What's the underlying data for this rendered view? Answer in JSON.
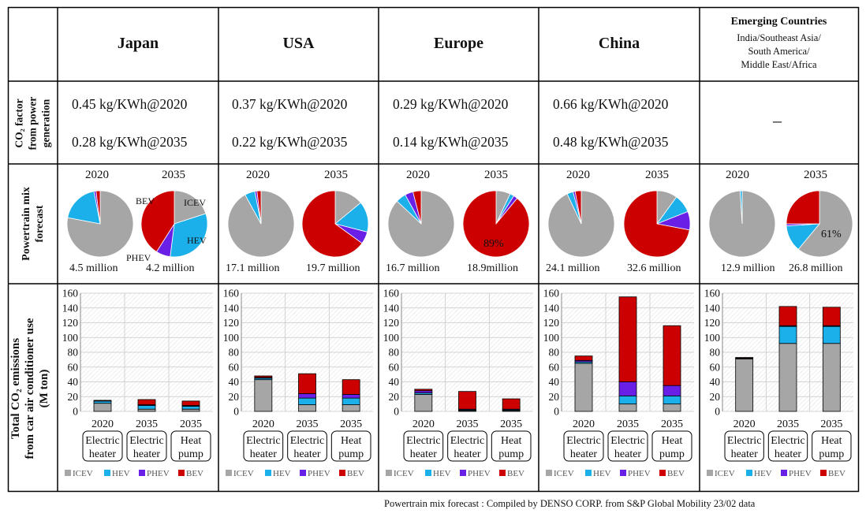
{
  "header": {
    "countries": [
      "Japan",
      "USA",
      "Europe",
      "China"
    ],
    "emerging_title": "Emerging Countries",
    "emerging_sub": [
      "India/Southeast Asia/",
      "South America/",
      "Middle East/Africa"
    ]
  },
  "row_labels": {
    "co2_factor": [
      "CO₂ factor",
      "from power",
      "generation"
    ],
    "powertrain": [
      "Powertrain mix",
      "forecast"
    ],
    "emissions": [
      "Total CO₂ emissions",
      "from car air conditioner use",
      "(M ton)"
    ]
  },
  "co2_factors": [
    [
      "0.45 kg/KWh@2020",
      "0.28 kg/KWh@2035"
    ],
    [
      "0.37 kg/KWh@2020",
      "0.22 kg/KWh@2035"
    ],
    [
      "0.29 kg/KWh@2020",
      "0.14 kg/KWh@2035"
    ],
    [
      "0.66 kg/KWh@2020",
      "0.48 kg/KWh@2035"
    ]
  ],
  "co2_factor_emerging": "–",
  "years": [
    "2020",
    "2035"
  ],
  "colors": {
    "ICEV": "#a6a6a6",
    "HEV": "#1cb0ea",
    "PHEV": "#6a1fe6",
    "BEV": "#cc0000"
  },
  "pie_labels": {
    "bev": "BEV",
    "icev": "ICEV",
    "hev": "HEV",
    "phev": "PHEV",
    "europe_bev": "89%",
    "emerging_icev": "61%"
  },
  "vehicles": [
    [
      "4.5 million",
      "4.2 million"
    ],
    [
      "17.1 million",
      "19.7 million"
    ],
    [
      "16.7 million",
      "18.9million"
    ],
    [
      "24.1 million",
      "32.6 million"
    ],
    [
      "12.9 million",
      "26.8 million"
    ]
  ],
  "legend": [
    "ICEV",
    "HEV",
    "PHEV",
    "BEV"
  ],
  "source": "Powertrain mix forecast : Compiled by DENSO CORP. from S&P Global Mobility 23/02 data",
  "chart_data": {
    "pies": {
      "type": "pie",
      "series_order": [
        "ICEV",
        "HEV",
        "PHEV",
        "BEV"
      ],
      "regions": [
        {
          "region": "Japan",
          "2020": [
            78,
            19,
            1,
            2
          ],
          "2035": [
            20,
            32,
            7,
            41
          ]
        },
        {
          "region": "USA",
          "2020": [
            92,
            5,
            1,
            2
          ],
          "2035": [
            14,
            15,
            6,
            65
          ]
        },
        {
          "region": "Europe",
          "2020": [
            87,
            5,
            4,
            4
          ],
          "2035": [
            7,
            2,
            2,
            89
          ]
        },
        {
          "region": "China",
          "2020": [
            93,
            3,
            1,
            3
          ],
          "2035": [
            10,
            9,
            9,
            72
          ]
        },
        {
          "region": "Emerging Countries",
          "2020": [
            99,
            1,
            0,
            0
          ],
          "2035": [
            61,
            13,
            1,
            25
          ]
        }
      ]
    },
    "bars": {
      "type": "bar",
      "stacked": true,
      "series_order": [
        "ICEV",
        "HEV",
        "PHEV",
        "BEV"
      ],
      "ylim": [
        0,
        160
      ],
      "yticks": [
        0,
        20,
        40,
        60,
        80,
        100,
        120,
        140,
        160
      ],
      "grid": true,
      "legend_position": "bottom",
      "categories": [
        [
          "2020",
          "Electric",
          "heater"
        ],
        [
          "2035",
          "Electric",
          "heater"
        ],
        [
          "2035",
          "Heat",
          "pump"
        ]
      ],
      "regions": [
        {
          "region": "Japan",
          "bars": [
            [
              11,
              3,
              0,
              1
            ],
            [
              3,
              5,
              1,
              7
            ],
            [
              3,
              4,
              1,
              6
            ]
          ]
        },
        {
          "region": "USA",
          "bars": [
            [
              43,
              2,
              1,
              2
            ],
            [
              9,
              9,
              6,
              27
            ],
            [
              9,
              9,
              5,
              20
            ]
          ]
        },
        {
          "region": "Europe",
          "bars": [
            [
              23,
              2,
              3,
              2
            ],
            [
              1,
              1,
              1,
              24
            ],
            [
              1,
              1,
              1,
              14
            ]
          ]
        },
        {
          "region": "China",
          "bars": [
            [
              65,
              2,
              2,
              6
            ],
            [
              10,
              11,
              19,
              115
            ],
            [
              10,
              11,
              14,
              81
            ]
          ]
        },
        {
          "region": "Emerging Countries",
          "bars": [
            [
              71,
              1,
              0,
              1
            ],
            [
              92,
              23,
              1,
              26
            ],
            [
              92,
              23,
              1,
              25
            ]
          ]
        }
      ]
    }
  }
}
